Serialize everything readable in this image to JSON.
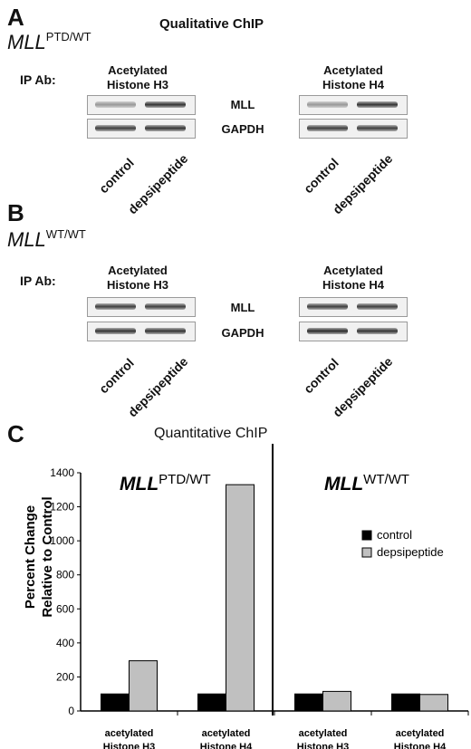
{
  "panel_a": {
    "letter": "A",
    "title": "Qualitative ChIP",
    "gene": "MLL",
    "genotype": "PTD/WT",
    "ip_label": "IP Ab:",
    "col1_line1": "Acetylated",
    "col1_line2": "Histone H3",
    "col2_line1": "Acetylated",
    "col2_line2": "Histone H4",
    "band_mll": "MLL",
    "band_gapdh": "GAPDH",
    "lane_control": "control",
    "lane_treat": "depsipeptide"
  },
  "panel_b": {
    "letter": "B",
    "gene": "MLL",
    "genotype": "WT/WT",
    "ip_label": "IP Ab:",
    "col1_line1": "Acetylated",
    "col1_line2": "Histone H3",
    "col2_line1": "Acetylated",
    "col2_line2": "Histone H4",
    "band_mll": "MLL",
    "band_gapdh": "GAPDH",
    "lane_control": "control",
    "lane_treat": "depsipeptide"
  },
  "panel_c": {
    "letter": "C",
    "title": "Quantitative ChIP",
    "ylabel_line1": "Percent Change",
    "ylabel_line2": "Relative to Control",
    "group1_gene": "MLL",
    "group1_genotype": "PTD/WT",
    "group2_gene": "MLL",
    "group2_genotype": "WT/WT"
  },
  "chart_data": {
    "type": "bar",
    "categories": [
      "acetylated Histone H3",
      "acetylated Histone H4",
      "acetylated Histone H3",
      "acetylated Histone H4"
    ],
    "category_lines": [
      [
        "acetylated",
        "Histone H3"
      ],
      [
        "acetylated",
        "Histone H4"
      ],
      [
        "acetylated",
        "Histone H3"
      ],
      [
        "acetylated",
        "Histone H4"
      ]
    ],
    "series": [
      {
        "name": "control",
        "values": [
          100,
          100,
          100,
          100
        ],
        "color": "#000000"
      },
      {
        "name": "depsipeptide",
        "values": [
          295,
          1330,
          115,
          97
        ],
        "color": "#c0c0c0"
      }
    ],
    "ylim": [
      0,
      1400
    ],
    "yticks": [
      0,
      200,
      400,
      600,
      800,
      1000,
      1200,
      1400
    ],
    "grid": false,
    "legend_position": "right"
  },
  "gels": {
    "a_h3_mll": [
      0.45,
      0.95
    ],
    "a_h3_gapdh": [
      0.9,
      0.95
    ],
    "a_h4_mll": [
      0.45,
      0.95
    ],
    "a_h4_gapdh": [
      0.9,
      0.9
    ],
    "b_h3_mll": [
      0.9,
      0.9
    ],
    "b_h3_gapdh": [
      0.95,
      0.95
    ],
    "b_h4_mll": [
      0.9,
      0.9
    ],
    "b_h4_gapdh": [
      1.0,
      0.95
    ]
  }
}
